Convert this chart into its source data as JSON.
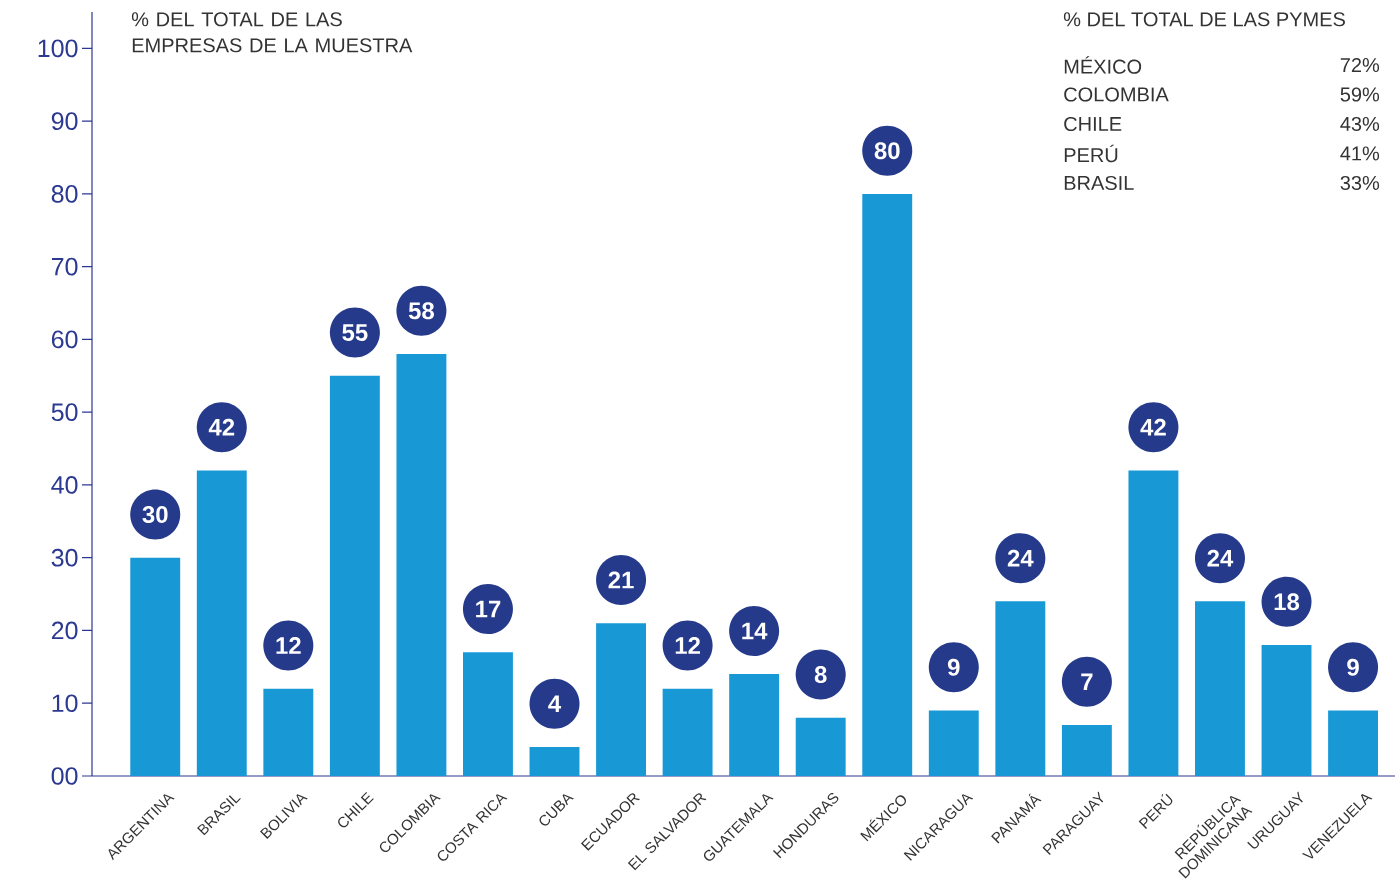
{
  "chart_data": {
    "type": "bar",
    "title": "% DEL TOTAL DE LAS EMPRESAS DE LA MUESTRA",
    "categories": [
      "ARGENTINA",
      "BRASIL",
      "BOLIVIA",
      "CHILE",
      "COLOMBIA",
      "COSTA RICA",
      "CUBA",
      "ECUADOR",
      "EL SALVADOR",
      "GUATEMALA",
      "HONDURAS",
      "MÉXICO",
      "NICARAGUA",
      "PANAMÁ",
      "PARAGUAY",
      "PERÚ",
      "REPÚBLICA DOMINICANA",
      "URUGUAY",
      "VENEZUELA"
    ],
    "values": [
      30,
      42,
      12,
      55,
      58,
      17,
      4,
      21,
      12,
      14,
      8,
      80,
      9,
      24,
      7,
      42,
      24,
      18,
      9
    ],
    "color": "#1899d6",
    "data_labels": true,
    "ylim": [
      0,
      105
    ],
    "yticks": [
      {
        "value": 0,
        "label": "00"
      },
      10,
      20,
      30,
      40,
      50,
      60,
      70,
      80,
      90,
      100
    ],
    "annotations": [
      "% DEL TOTAL DE LAS PYMES",
      "MÉXICO",
      "72%",
      "COLOMBIA",
      "59%",
      "CHILE",
      "43%",
      "PERÚ",
      "41%",
      "BRASIL",
      "33%"
    ]
  }
}
